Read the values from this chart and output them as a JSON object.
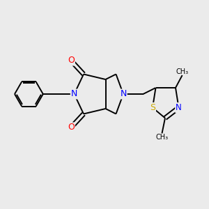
{
  "background_color": "#ebebeb",
  "atom_colors": {
    "N": "#0000ff",
    "O": "#ff0000",
    "S": "#ccaa00"
  },
  "bond_color": "#000000",
  "bond_width": 1.4,
  "figsize": [
    3.0,
    3.0
  ],
  "dpi": 100
}
